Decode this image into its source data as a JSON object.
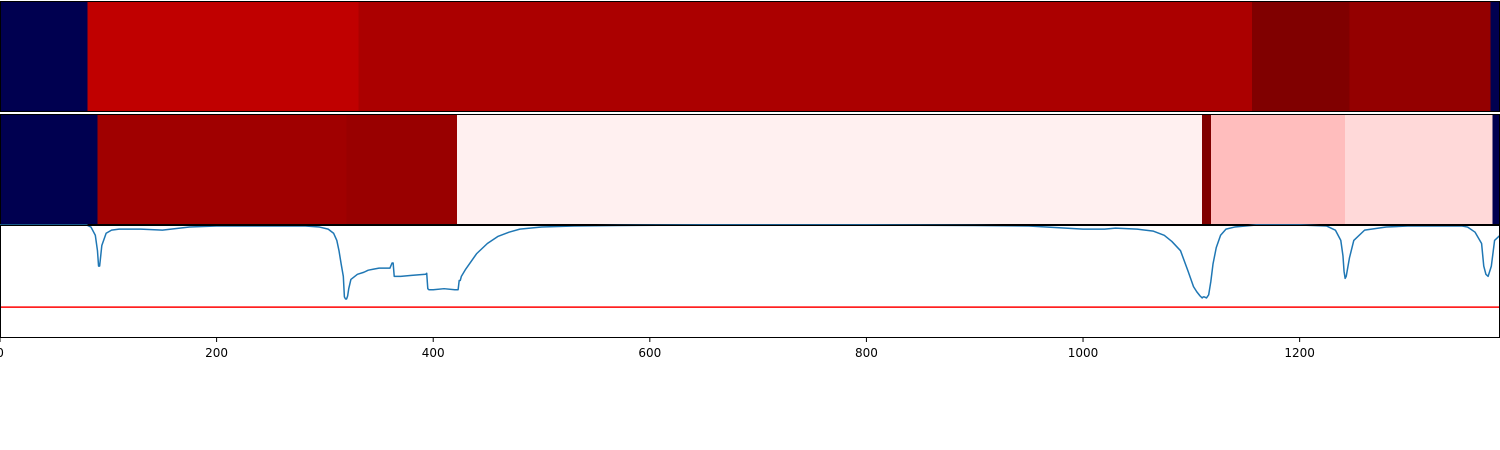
{
  "chart_data": {
    "type": "heatmap",
    "xlim": [
      0,
      1385
    ],
    "x_ticks": [
      "0",
      "200",
      "400",
      "600",
      "800",
      "1000",
      "1200"
    ],
    "x_tick_values": [
      0,
      200,
      400,
      600,
      800,
      1000,
      1200
    ],
    "rows": [
      {
        "segments": [
          {
            "start": 0,
            "end": 81,
            "color": "#000050"
          },
          {
            "start": 81,
            "end": 331,
            "color": "#c00000"
          },
          {
            "start": 331,
            "end": 1156,
            "color": "#ab0000"
          },
          {
            "start": 1156,
            "end": 1246,
            "color": "#800000"
          },
          {
            "start": 1246,
            "end": 1376,
            "color": "#940000"
          },
          {
            "start": 1376,
            "end": 1385,
            "color": "#000050"
          }
        ]
      },
      {
        "segments": [
          {
            "start": 0,
            "end": 90,
            "color": "#000050"
          },
          {
            "start": 90,
            "end": 320,
            "color": "#a00000"
          },
          {
            "start": 320,
            "end": 422,
            "color": "#990000"
          },
          {
            "start": 422,
            "end": 1110,
            "color": "#fff0f0"
          },
          {
            "start": 1110,
            "end": 1118,
            "color": "#800000"
          },
          {
            "start": 1118,
            "end": 1242,
            "color": "#ffbdbd"
          },
          {
            "start": 1242,
            "end": 1378,
            "color": "#ffd9d9"
          },
          {
            "start": 1378,
            "end": 1385,
            "color": "#000050"
          }
        ]
      }
    ],
    "line": {
      "color": "#1f77b4",
      "ylim": [
        -0.1,
        1.0
      ],
      "x": [
        0,
        80,
        84,
        88,
        90,
        91,
        92,
        94,
        98,
        103,
        110,
        130,
        150,
        175,
        200,
        230,
        260,
        282,
        295,
        303,
        308,
        311,
        313,
        315,
        317,
        318,
        319,
        320,
        321,
        322,
        324,
        330,
        336,
        340,
        345,
        350,
        360,
        362,
        363,
        364,
        370,
        380,
        393,
        394,
        395,
        396,
        400,
        410,
        420,
        423,
        424,
        425,
        426,
        430,
        440,
        450,
        460,
        470,
        480,
        500,
        530,
        570,
        650,
        800,
        900,
        950,
        1000,
        1020,
        1030,
        1050,
        1065,
        1075,
        1082,
        1090,
        1097,
        1102,
        1105,
        1108,
        1110,
        1111,
        1112,
        1114,
        1116,
        1118,
        1120,
        1123,
        1127,
        1132,
        1140,
        1150,
        1160,
        1200,
        1225,
        1233,
        1238,
        1240,
        1241,
        1242,
        1243,
        1246,
        1250,
        1260,
        1280,
        1300,
        1330,
        1350,
        1355,
        1362,
        1368,
        1370,
        1372,
        1374,
        1377,
        1380,
        1385
      ],
      "y": [
        1.0,
        1.0,
        0.98,
        0.9,
        0.75,
        0.6,
        0.6,
        0.8,
        0.92,
        0.95,
        0.96,
        0.96,
        0.95,
        0.98,
        0.99,
        0.99,
        0.99,
        0.99,
        0.98,
        0.96,
        0.92,
        0.85,
        0.75,
        0.62,
        0.5,
        0.3,
        0.28,
        0.28,
        0.31,
        0.38,
        0.47,
        0.52,
        0.54,
        0.56,
        0.57,
        0.58,
        0.58,
        0.63,
        0.63,
        0.5,
        0.5,
        0.51,
        0.52,
        0.53,
        0.38,
        0.37,
        0.37,
        0.38,
        0.37,
        0.37,
        0.46,
        0.46,
        0.5,
        0.57,
        0.72,
        0.82,
        0.89,
        0.93,
        0.96,
        0.98,
        0.99,
        0.995,
        1.0,
        1.0,
        0.995,
        0.99,
        0.96,
        0.96,
        0.97,
        0.96,
        0.94,
        0.9,
        0.84,
        0.75,
        0.55,
        0.4,
        0.35,
        0.31,
        0.29,
        0.3,
        0.3,
        0.29,
        0.32,
        0.45,
        0.62,
        0.78,
        0.9,
        0.96,
        0.98,
        0.99,
        1.0,
        1.0,
        0.99,
        0.95,
        0.85,
        0.7,
        0.55,
        0.48,
        0.5,
        0.68,
        0.85,
        0.95,
        0.98,
        0.99,
        0.99,
        0.99,
        0.98,
        0.93,
        0.82,
        0.6,
        0.52,
        0.5,
        0.6,
        0.85,
        0.9,
        0.93
      ],
      "threshold": 0.2,
      "threshold_color": "#ff0000"
    }
  }
}
